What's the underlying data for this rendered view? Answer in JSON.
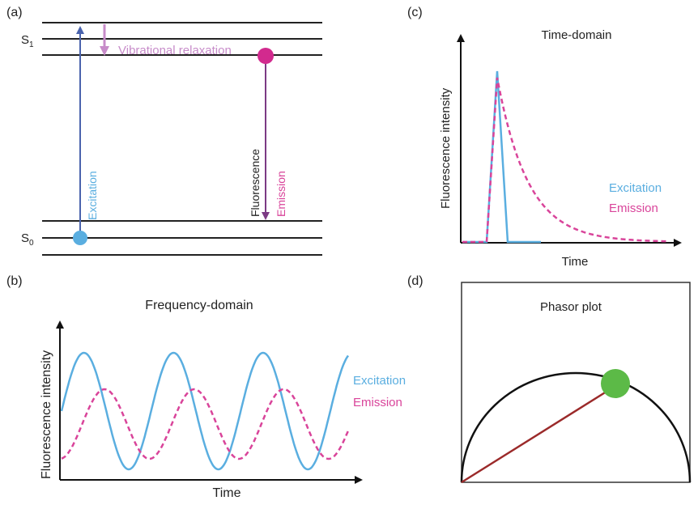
{
  "panels": {
    "a": {
      "tag": "(a)",
      "s1_label": "S",
      "s1_sub": "1",
      "s0_label": "S",
      "s0_sub": "0",
      "excitation": "Excitation",
      "vibrational": "Vibrational relaxation",
      "fluorescence": "Fluorescence",
      "emission": "Emission"
    },
    "b": {
      "tag": "(b)",
      "title": "Frequency-domain",
      "ylabel": "Fluorescence intensity",
      "xlabel": "Time",
      "legend_excitation": "Excitation",
      "legend_emission": "Emission"
    },
    "c": {
      "tag": "(c)",
      "title": "Time-domain",
      "ylabel": "Fluorescence intensity",
      "xlabel": "Time",
      "legend_excitation": "Excitation",
      "legend_emission": "Emission"
    },
    "d": {
      "tag": "(d)",
      "title": "Phasor plot"
    }
  },
  "colors": {
    "excitation": "#5aaee0",
    "emission": "#d9449a",
    "relaxation": "#c78bc9",
    "excitation_arrow": "#4a63ad",
    "emission_arrow": "#7c3a84",
    "phasor_point": "#5cba47",
    "phasor_line": "#9b2a2a"
  },
  "chart_data": [
    {
      "type": "line",
      "panel": "b",
      "description_series": [
        {
          "name": "Excitation",
          "function": "sinusoid",
          "periods": 3.2,
          "relative_amplitude": 1.0,
          "phase": 0
        },
        {
          "name": "Emission",
          "function": "sinusoid",
          "periods": 3.2,
          "relative_amplitude": 0.5,
          "phase_lag": "shifted"
        }
      ]
    },
    {
      "type": "line",
      "panel": "c",
      "series": [
        {
          "name": "Excitation",
          "shape": "pulse"
        },
        {
          "name": "Emission",
          "shape": "exponential decay"
        }
      ]
    },
    {
      "type": "scatter",
      "panel": "d",
      "points": [
        {
          "shape": "point on semicircle"
        }
      ]
    }
  ]
}
